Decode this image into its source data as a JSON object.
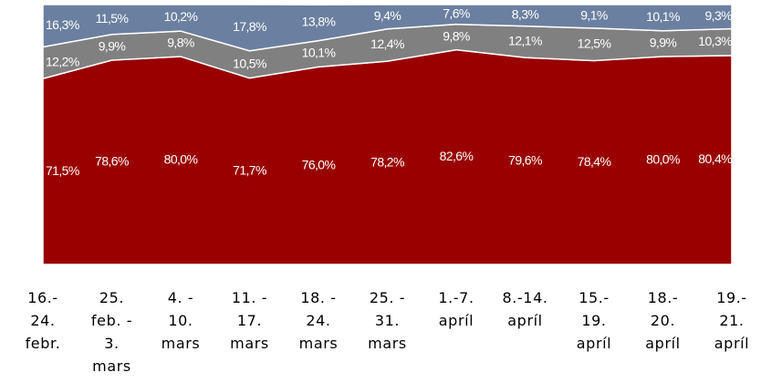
{
  "chart_data": {
    "type": "stacked_area",
    "categories": [
      "16.-\n24.\nfebr.",
      "25.\nfeb. -\n3.\nmars",
      "4. -\n10.\nmars",
      "11. -\n17.\nmars",
      "18. -\n24.\nmars",
      "25. -\n31.\nmars",
      "1.-7.\napríl",
      "8.-14.\napríl",
      "15.-\n19.\napríl",
      "18.-\n20.\napríl",
      "19.-\n21.\napríl"
    ],
    "ylim": [
      0,
      100
    ],
    "series": [
      {
        "color": "#990000",
        "values": [
          71.5,
          78.6,
          80.0,
          71.7,
          76.0,
          78.2,
          82.6,
          79.6,
          78.4,
          80.0,
          80.4
        ],
        "value_labels": [
          "71,5%",
          "78,6%",
          "80,0%",
          "71,7%",
          "76,0%",
          "78,2%",
          "82,6%",
          "79,6%",
          "78,4%",
          "80,0%",
          "80,4%"
        ]
      },
      {
        "color": "#808080",
        "values": [
          12.2,
          9.9,
          9.8,
          10.5,
          10.1,
          12.4,
          9.8,
          12.1,
          12.5,
          9.9,
          10.3
        ],
        "value_labels": [
          "12,2%",
          "9,9%",
          "9,8%",
          "10,5%",
          "10,1%",
          "12,4%",
          "9,8%",
          "12,1%",
          "12,5%",
          "9,9%",
          "10,3%"
        ]
      },
      {
        "color": "#6b7fa0",
        "values": [
          16.3,
          11.5,
          10.2,
          17.8,
          13.8,
          9.4,
          7.6,
          8.3,
          9.1,
          10.1,
          9.3
        ],
        "value_labels": [
          "16,3%",
          "11,5%",
          "10,2%",
          "17,8%",
          "13,8%",
          "9,4%",
          "7,6%",
          "8,3%",
          "9,1%",
          "10,1%",
          "9,3%"
        ]
      }
    ]
  }
}
